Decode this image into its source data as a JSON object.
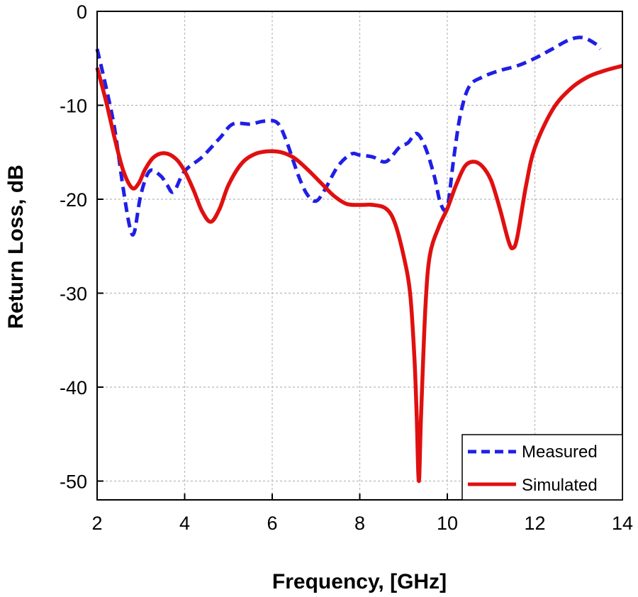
{
  "chart_data": {
    "type": "line",
    "title": "",
    "xlabel": "Frequency, [GHz]",
    "ylabel": "Return Loss, dB",
    "xlim": [
      2,
      14
    ],
    "ylim": [
      -52,
      0
    ],
    "xticks": [
      2,
      4,
      6,
      8,
      10,
      12,
      14
    ],
    "yticks": [
      0,
      -10,
      -20,
      -30,
      -40,
      -50
    ],
    "grid": true,
    "legend_position": "bottom-right",
    "colors": {
      "measured": "#1f1fe6",
      "simulated": "#e01010",
      "grid": "#b8b8b8",
      "axis": "#000000"
    },
    "series": [
      {
        "name": "Measured",
        "style": "dashed",
        "x": [
          2.0,
          2.2,
          2.4,
          2.6,
          2.75,
          2.85,
          3.0,
          3.2,
          3.45,
          3.6,
          3.75,
          4.0,
          4.4,
          4.8,
          5.1,
          5.5,
          5.8,
          6.1,
          6.3,
          6.6,
          6.8,
          7.0,
          7.2,
          7.5,
          7.8,
          8.0,
          8.3,
          8.6,
          8.9,
          9.1,
          9.3,
          9.5,
          9.7,
          9.85,
          10.0,
          10.15,
          10.3,
          10.5,
          10.8,
          11.2,
          11.6,
          12.0,
          12.4,
          12.8,
          13.1,
          13.4,
          13.5
        ],
        "values": [
          -4.0,
          -8.0,
          -12.5,
          -19.0,
          -23.0,
          -23.5,
          -19.5,
          -17.0,
          -17.5,
          -18.5,
          -19.2,
          -17.0,
          -15.5,
          -13.5,
          -12.0,
          -12.0,
          -11.7,
          -11.8,
          -13.5,
          -17.5,
          -19.5,
          -20.2,
          -19.0,
          -16.5,
          -15.2,
          -15.3,
          -15.5,
          -16.0,
          -14.5,
          -14.0,
          -13.0,
          -14.5,
          -17.5,
          -20.5,
          -20.8,
          -15.5,
          -11.0,
          -8.0,
          -7.0,
          -6.3,
          -5.8,
          -5.0,
          -4.0,
          -3.0,
          -2.8,
          -3.5,
          -4.0
        ]
      },
      {
        "name": "Simulated",
        "style": "solid",
        "x": [
          2.0,
          2.2,
          2.4,
          2.6,
          2.8,
          2.95,
          3.1,
          3.3,
          3.55,
          3.8,
          4.0,
          4.2,
          4.4,
          4.6,
          4.8,
          5.0,
          5.3,
          5.6,
          5.9,
          6.2,
          6.5,
          6.8,
          7.1,
          7.4,
          7.7,
          8.0,
          8.3,
          8.6,
          8.8,
          9.0,
          9.15,
          9.25,
          9.3,
          9.35,
          9.4,
          9.5,
          9.6,
          9.8,
          10.0,
          10.2,
          10.4,
          10.6,
          10.8,
          11.0,
          11.2,
          11.4,
          11.5,
          11.6,
          11.8,
          12.0,
          12.4,
          12.8,
          13.2,
          13.6,
          14.0
        ],
        "values": [
          -6.0,
          -9.5,
          -13.5,
          -17.0,
          -18.8,
          -18.3,
          -16.8,
          -15.5,
          -15.1,
          -15.7,
          -17.0,
          -19.0,
          -21.3,
          -22.4,
          -21.0,
          -18.5,
          -16.2,
          -15.2,
          -14.9,
          -15.0,
          -15.6,
          -16.8,
          -18.2,
          -19.6,
          -20.5,
          -20.6,
          -20.6,
          -21.0,
          -22.5,
          -26.0,
          -30.0,
          -37.0,
          -43.0,
          -50.0,
          -43.0,
          -31.5,
          -26.0,
          -23.0,
          -21.0,
          -18.5,
          -16.5,
          -16.0,
          -16.5,
          -18.0,
          -21.0,
          -24.5,
          -25.2,
          -24.0,
          -18.5,
          -14.5,
          -10.5,
          -8.3,
          -7.0,
          -6.3,
          -5.8
        ]
      }
    ]
  }
}
